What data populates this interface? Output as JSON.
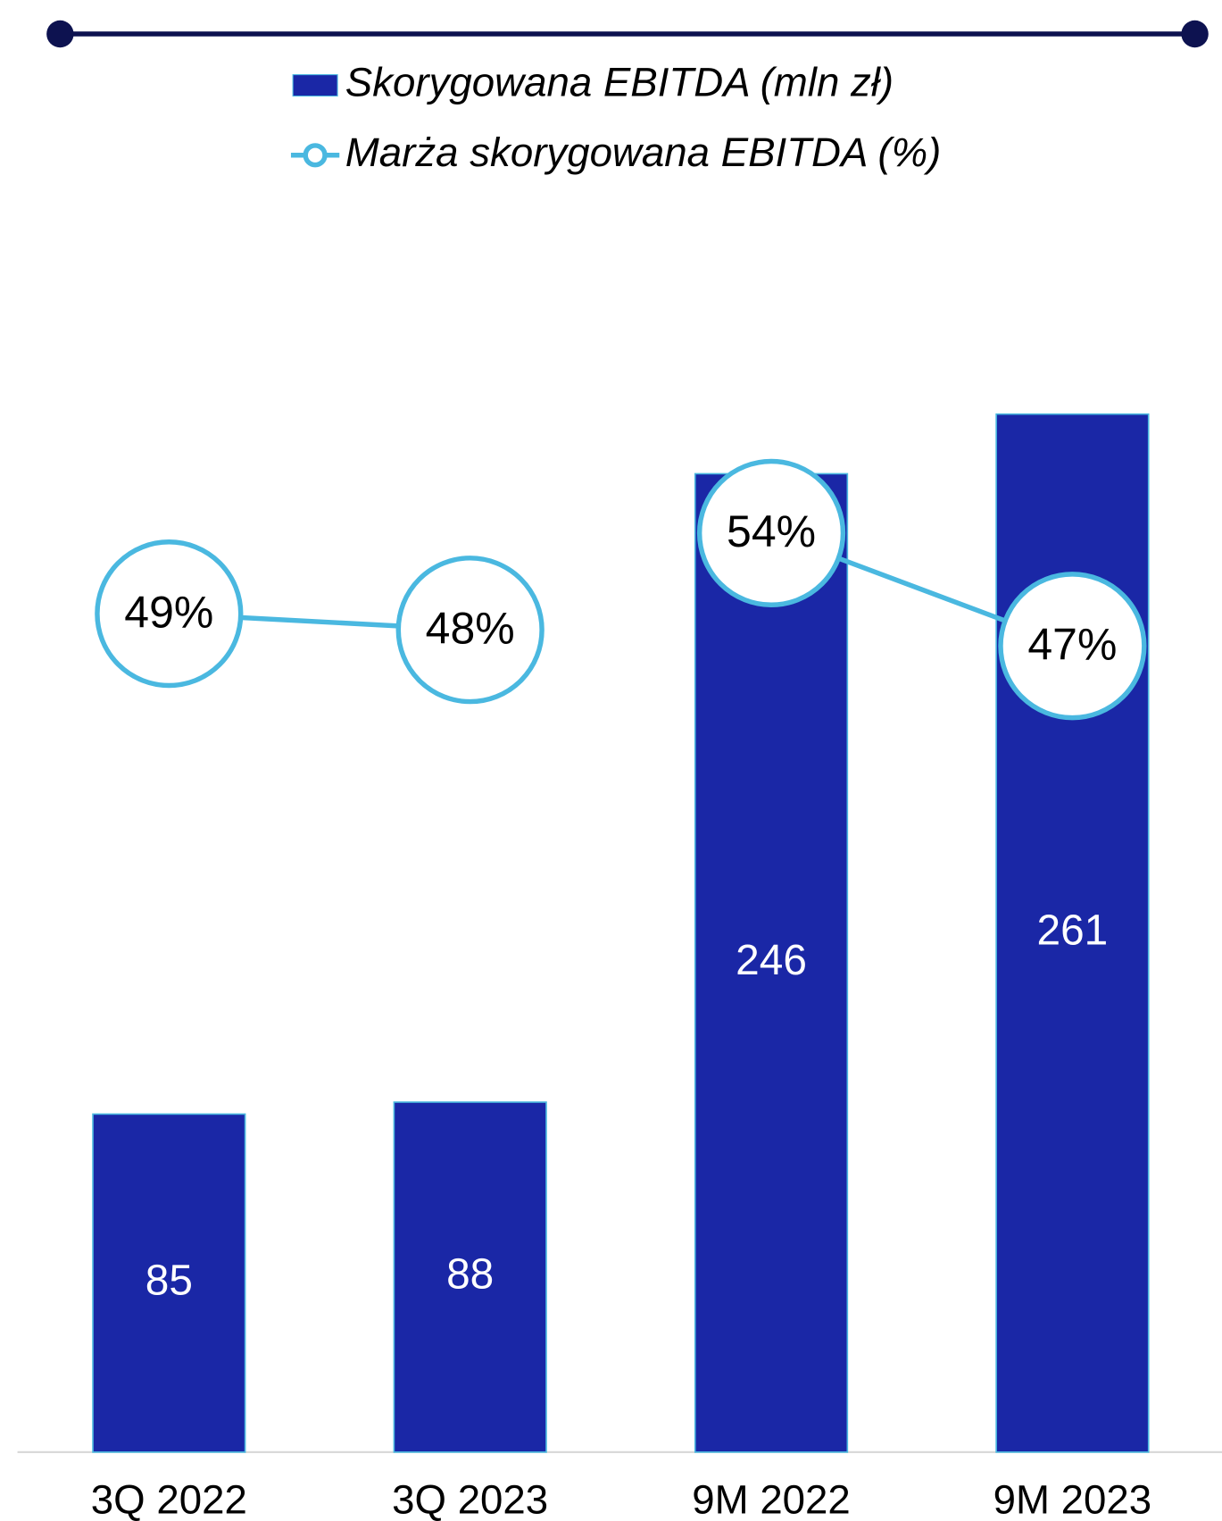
{
  "chart_data": {
    "type": "bar_line",
    "categories": [
      "3Q 2022",
      "3Q 2023",
      "9M 2022",
      "9M 2023"
    ],
    "series": [
      {
        "name": "Skorygowana EBITDA (mln zł)",
        "type": "bar",
        "color": "#1a27a6",
        "values": [
          85,
          88,
          246,
          261
        ]
      },
      {
        "name": "Marża skorygowana EBITDA (%)",
        "type": "line",
        "axis": "y2",
        "color": "#4ab8e0",
        "values": [
          49,
          48,
          54,
          47
        ],
        "value_labels": [
          "49%",
          "48%",
          "54%",
          "47%"
        ]
      }
    ],
    "ylim": [
      0,
      300
    ],
    "y2lim": [
      -3,
      71
    ]
  }
}
